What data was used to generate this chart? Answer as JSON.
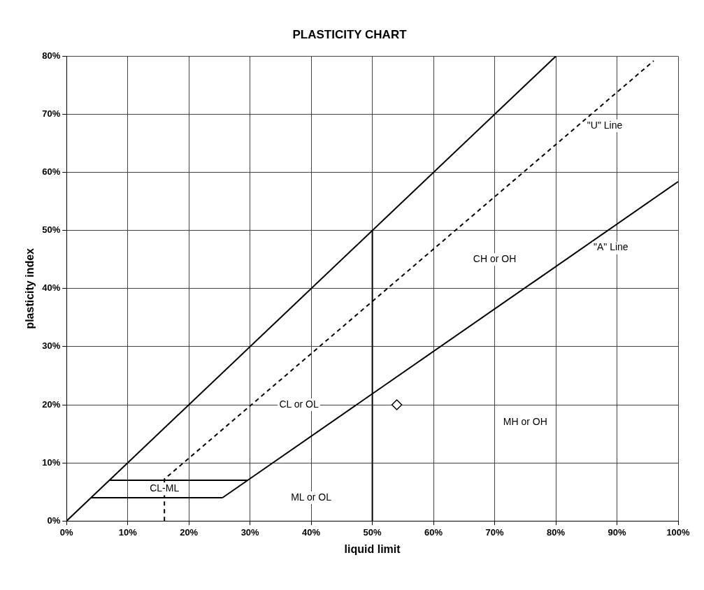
{
  "chart_data": {
    "type": "scatter",
    "title": "PLASTICITY CHART",
    "xlabel": "liquid limit",
    "ylabel": "plasticity index",
    "xlim": [
      0,
      100
    ],
    "ylim": [
      0,
      80
    ],
    "xticks": [
      {
        "value": 0,
        "label": "0%"
      },
      {
        "value": 10,
        "label": "10%"
      },
      {
        "value": 20,
        "label": "20%"
      },
      {
        "value": 30,
        "label": "30%"
      },
      {
        "value": 40,
        "label": "40%"
      },
      {
        "value": 50,
        "label": "50%"
      },
      {
        "value": 60,
        "label": "60%"
      },
      {
        "value": 70,
        "label": "70%"
      },
      {
        "value": 80,
        "label": "80%"
      },
      {
        "value": 90,
        "label": "90%"
      },
      {
        "value": 100,
        "label": "100%"
      }
    ],
    "yticks": [
      {
        "value": 0,
        "label": "0%"
      },
      {
        "value": 10,
        "label": "10%"
      },
      {
        "value": 20,
        "label": "20%"
      },
      {
        "value": 30,
        "label": "30%"
      },
      {
        "value": 40,
        "label": "40%"
      },
      {
        "value": 50,
        "label": "50%"
      },
      {
        "value": 60,
        "label": "60%"
      },
      {
        "value": 70,
        "label": "70%"
      },
      {
        "value": 80,
        "label": "80%"
      }
    ],
    "grid": true,
    "legend": false,
    "series": [
      {
        "type": "line",
        "color": "#000000",
        "marker": "none",
        "line_style": "solid",
        "x": [
          0,
          80
        ],
        "values": [
          0,
          80
        ]
      },
      {
        "type": "line",
        "color": "#000000",
        "marker": "none",
        "line_style": "dashed",
        "x": [
          16,
          16,
          96
        ],
        "values": [
          0,
          7.2,
          79.2
        ]
      },
      {
        "type": "line",
        "color": "#000000",
        "marker": "none",
        "line_style": "solid",
        "x": [
          25.5,
          100
        ],
        "values": [
          4,
          58.4
        ]
      },
      {
        "type": "line",
        "color": "#000000",
        "marker": "none",
        "line_style": "solid",
        "x": [
          7,
          29.6
        ],
        "values": [
          7,
          7
        ]
      },
      {
        "type": "line",
        "color": "#000000",
        "marker": "none",
        "line_style": "solid",
        "x": [
          4,
          25.5
        ],
        "values": [
          4,
          4
        ]
      },
      {
        "type": "line",
        "color": "#000000",
        "marker": "none",
        "line_style": "solid",
        "x": [
          50,
          50
        ],
        "values": [
          0,
          50
        ]
      },
      {
        "color": "#000000",
        "marker": "diamond",
        "x": [
          54
        ],
        "values": [
          20
        ]
      }
    ],
    "annotations": [
      "CL or OL",
      "CH or OH",
      "MH or OH",
      "ML or OL",
      "CL-ML",
      "\"U\" Line",
      "\"A\" Line"
    ]
  }
}
